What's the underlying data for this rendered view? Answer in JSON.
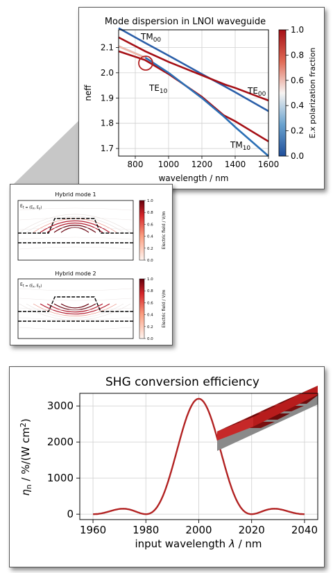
{
  "mode_plot": {
    "title": "Mode dispersion in LNOI waveguide",
    "xlabel": "wavelength / nm",
    "ylabel": "neff",
    "colorbar_label": "E.x polarization fraction",
    "colorbar_ticks": [
      "0.0",
      "0.2",
      "0.4",
      "0.6",
      "0.8",
      "1.0"
    ],
    "colormap": {
      "low": "#1f4e9b",
      "mid": "#f7f4f2",
      "high": "#a50f15"
    },
    "annotations": [
      {
        "text": "TM",
        "sub": "00"
      },
      {
        "text": "TE",
        "sub": "10"
      },
      {
        "text": "TE",
        "sub": "00"
      },
      {
        "text": "TM",
        "sub": "10"
      }
    ]
  },
  "hybrid_panels": [
    {
      "title": "Hybrid mode 1",
      "field_label": "E",
      "field_expr": "t = (E",
      "field_expr2": "x",
      "field_expr3": ", E",
      "field_expr4": "y",
      "field_expr5": ")",
      "colorbar_label": "Electric field / V/m",
      "colorbar_ticks": [
        "0.0",
        "0.2",
        "0.4",
        "0.6",
        "0.8",
        "1.0"
      ]
    },
    {
      "title": "Hybrid mode 2",
      "field_label": "E",
      "field_expr": "t = (E",
      "field_expr2": "x",
      "field_expr3": ", E",
      "field_expr4": "y",
      "field_expr5": ")",
      "colorbar_label": "Electric field / V/m",
      "colorbar_ticks": [
        "0.0",
        "0.2",
        "0.4",
        "0.6",
        "0.8",
        "1.0"
      ]
    }
  ],
  "shg_plot": {
    "title": "SHG conversion efficiency",
    "xlabel_pre": "input wavelength ",
    "xlabel_sym": "λ",
    "xlabel_post": " / nm",
    "ylabel_sym": "η",
    "ylabel_sub": "n",
    "ylabel_post": " / %/(W cm",
    "ylabel_sup": "2",
    "ylabel_end": ")",
    "line_color": "#b22222"
  },
  "chart_data": [
    {
      "type": "line",
      "title": "Mode dispersion in LNOI waveguide",
      "xlabel": "wavelength / nm",
      "ylabel": "neff",
      "xlim": [
        700,
        1600
      ],
      "ylim": [
        1.67,
        2.17
      ],
      "xticks": [
        800,
        1000,
        1200,
        1400,
        1600
      ],
      "yticks": [
        1.7,
        1.8,
        1.9,
        2.0,
        2.1
      ],
      "grid": true,
      "colorbar": {
        "label": "E.x polarization fraction",
        "range": [
          0.0,
          1.0
        ]
      },
      "series": [
        {
          "name": "TM00",
          "x": [
            700,
            860,
            1000,
            1200,
            1340,
            1400,
            1600
          ],
          "y": [
            2.177,
            2.118,
            2.068,
            1.995,
            1.945,
            1.923,
            1.848
          ]
        },
        {
          "name": "TE00",
          "x": [
            700,
            860,
            1000,
            1200,
            1340,
            1400,
            1600
          ],
          "y": [
            2.14,
            2.085,
            2.043,
            1.99,
            1.953,
            1.94,
            1.89
          ]
        },
        {
          "name": "TE10",
          "x": [
            700,
            860,
            1000,
            1200,
            1330,
            1400,
            1600
          ],
          "y": [
            2.085,
            2.05,
            1.995,
            1.905,
            1.832,
            1.808,
            1.728
          ]
        },
        {
          "name": "TM10",
          "x": [
            700,
            860,
            1000,
            1200,
            1330,
            1400,
            1600
          ],
          "y": [
            2.105,
            2.06,
            2.0,
            1.9,
            1.828,
            1.785,
            1.67
          ]
        }
      ]
    },
    {
      "type": "line",
      "title": "SHG conversion efficiency",
      "xlabel": "input wavelength λ / nm",
      "ylabel": "ηn / %/(W cm²)",
      "xlim": [
        1955,
        2045
      ],
      "ylim": [
        -150,
        3350
      ],
      "xticks": [
        1960,
        1980,
        2000,
        2020,
        2040
      ],
      "yticks": [
        0,
        1000,
        2000,
        3000
      ],
      "grid": true,
      "peak": {
        "x": 2000,
        "y": 3200
      },
      "sinc2_halfwidth": 20,
      "x_range": [
        1960,
        2040
      ]
    }
  ]
}
